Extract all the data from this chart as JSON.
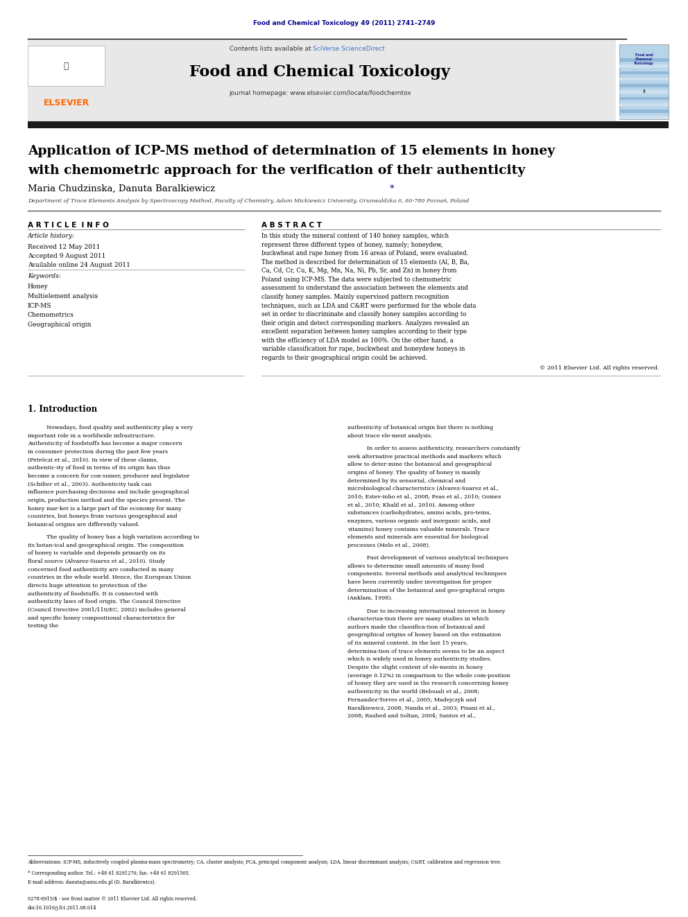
{
  "page_width": 9.92,
  "page_height": 13.23,
  "bg_color": "#ffffff",
  "top_journal_line": "Food and Chemical Toxicology 49 (2011) 2741–2749",
  "top_journal_line_color": "#00008B",
  "contents_line": "Contents lists available at ",
  "sciverse_text": "SciVerse ScienceDirect",
  "sciverse_color": "#4472C4",
  "journal_name": "Food and Chemical Toxicology",
  "journal_homepage_label": "journal homepage: www.elsevier.com/locate/foodchemtox",
  "elsevier_color": "#FF6600",
  "header_bg": "#E8E8E8",
  "black_bar_color": "#1a1a1a",
  "article_title_line1": "Application of ICP-MS method of determination of 15 elements in honey",
  "article_title_line2": "with chemometric approach for the verification of their authenticity",
  "authors": "Maria Chudzinska, Danuta Baralkiewicz *",
  "affiliation": "Department of Trace Elements Analysis by Spectroscopy Method, Faculty of Chemistry, Adam Mickiewicz University, Grunwaldzka 6, 60-780 Poznań, Poland",
  "article_info_header": "A R T I C L E  I N F O",
  "abstract_header": "A B S T R A C T",
  "article_history_label": "Article history:",
  "received": "Received 12 May 2011",
  "accepted": "Accepted 9 August 2011",
  "available": "Available online 24 August 2011",
  "keywords_label": "Keywords:",
  "keywords": [
    "Honey",
    "Multielement analysis",
    "ICP-MS",
    "Chemometrics",
    "Geographical origin"
  ],
  "abstract_text": "In this study the mineral content of 140 honey samples, which represent three different types of honey, namely; honeydew, buckwheat and rape honey from 16 areas of Poland, were evaluated. The method is described for determination of 15 elements (Al, B, Ba, Ca, Cd, Cr, Cu, K, Mg, Mn, Na, Ni, Pb, Sr, and Zn) in honey from Poland using ICP-MS. The data were subjected to chemometric assessment to understand the association between the elements and classify honey samples. Mainly supervised pattern recognition techniques, such as LDA and C&RT were performed for the whole data set in order to discriminate and classify honey samples according to their origin and detect corresponding markers. Analyzes revealed an excellent separation between honey samples according to their type with the efficiency of LDA model as 100%. On the other hand, a variable classification for rape, buckwheat and honeydew honeys in regards to their geographical origin could be achieved.",
  "copyright": "© 2011 Elsevier Ltd. All rights reserved.",
  "intro_header": "1. Introduction",
  "intro_col1_p1": "Nowadays, food quality and authenticity play a very important role in a worldwide infrastructure. Authenticity of foodstuffs has become a major concern in consumer protection during the past few years (Petróczi et al., 2010). In view of these claims, authentic-ity of food in terms of its origin has thus become a concern for con-sumer, producer and legislator (Schilter et al., 2003). Authenticity task can influence purchasing decisions and include geographical origin, production method and the species present. The honey mar-ket is a large part of the economy for many countries, but honeys from various geographical and botanical origins are differently valued.",
  "intro_col1_p2": "The quality of honey has a high variation according to its botan-ical and geographical origin. The composition of honey is variable and depends primarily on its floral source (Alvarez-Suarez et al., 2010). Study concerned food authenticity are conducted in many countries in the whole world. Hence, the European Union directs huge attention to protection of the authenticity of foodstuffs. It is connected with authenticity laws of food origin. The Council Directive (Council Directive 2001/110/EC, 2002) includes general and specific honey compositional characteristics for testing the",
  "intro_col2_p1": "authenticity of botanical origin but there is nothing about trace ele-ment analysis.",
  "intro_col2_p2": "In order to assess authenticity, researchers constantly seek alternative practical methods and markers which allow to deter-mine the botanical and geographical origins of honey. The quality of honey is mainly determined by its sensorial, chemical and microbiological characteristics (Alvarez-Suarez et al., 2010; Estev-inho et al., 2008; Feas et al., 2010; Gomes et al., 2010; Khalil et al., 2010). Among other substances (carbohydrates, amino acids, pro-teins, enzymes, various organic and inorganic acids, and vitamins) honey contains valuable minerals. Trace elements and minerals are essential for biological processes (Melo et al., 2008).",
  "intro_col2_p3": "Fast development of various analytical techniques allows to determine small amounts of many food components. Several methods and analytical techniques have been currently under investigation for proper determination of the botanical and geo-graphical origin (Anklam, 1998).",
  "intro_col2_p4": "Due to increasing international interest in honey characteriza-tion there are many studies in which authors made the classifica-tion of botanical and geographical origins of honey based on the estimation of its mineral content. In the last 15 years, determina-tion of trace elements seems to be an aspect which is widely used in honey authenticity studies. Despite the slight content of ele-ments in honey (average 0.12%) in comparison to the whole com-position of honey they are used in the research concerning honey authenticity in the world (Belouali et al., 2008; Fernandez-Torres et al., 2005; Madejczyk and Baralkiewicz, 2008; Nanda et al., 2003; Pisani et al., 2008; Rashed and Soltan, 2004; Santos et al.,",
  "footnote_abbrev": "Abbreviations: ICP-MS, inductively coupled plasma-mass spectrometry; CA, cluster analysis; PCA, principal component analysis; LDA, linear discriminant analysis; C&RT, calibration and regression tree.",
  "footnote_corresponding": "* Corresponding author. Tel.: +48 61 8291270; fax: +48 61 8291505.",
  "footnote_email": "E-mail address: danuta@amu.edu.pl (D. Baralkiewicz).",
  "issn_line": "0278-6915/$ - see front matter © 2011 Elsevier Ltd. All rights reserved.",
  "doi_line": "doi:10.1016/j.fct.2011.08.014"
}
